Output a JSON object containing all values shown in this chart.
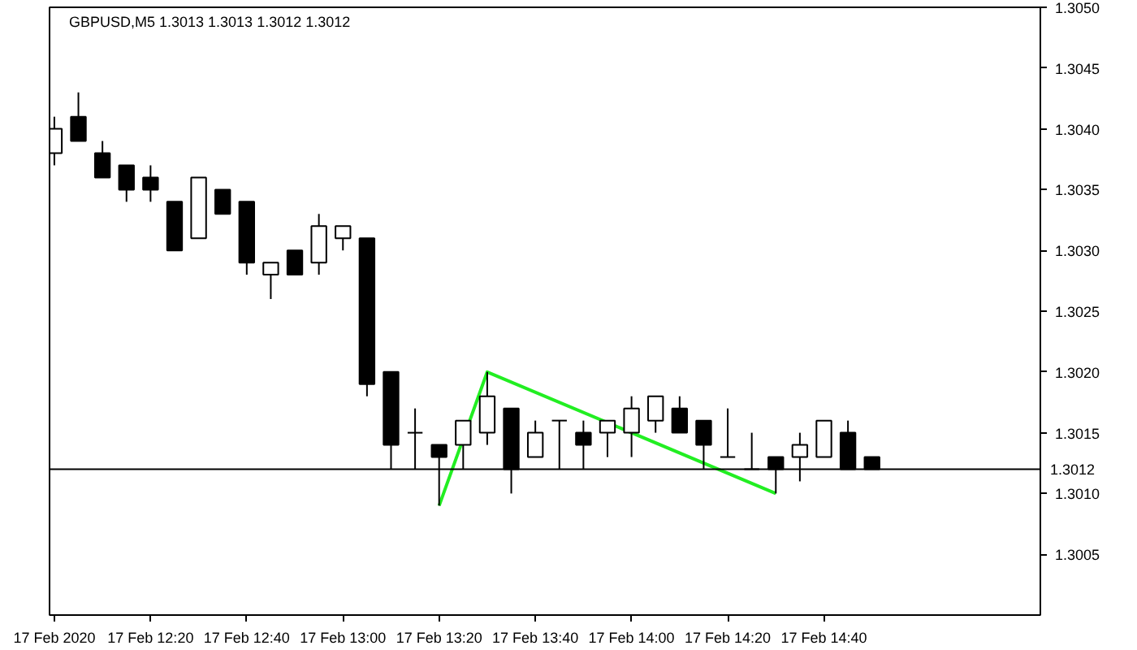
{
  "chart_data": {
    "type": "candlestick",
    "title": "GBPUSD,M5  1.3013 1.3013 1.3012 1.3012",
    "x": [
      "2020-02-17T12:00",
      "2020-02-17T12:05",
      "2020-02-17T12:10",
      "2020-02-17T12:15",
      "2020-02-17T12:20",
      "2020-02-17T12:25",
      "2020-02-17T12:30",
      "2020-02-17T12:35",
      "2020-02-17T12:40",
      "2020-02-17T12:45",
      "2020-02-17T12:50",
      "2020-02-17T12:55",
      "2020-02-17T13:00",
      "2020-02-17T13:05",
      "2020-02-17T13:10",
      "2020-02-17T13:15",
      "2020-02-17T13:20",
      "2020-02-17T13:25",
      "2020-02-17T13:30",
      "2020-02-17T13:35",
      "2020-02-17T13:40",
      "2020-02-17T13:45",
      "2020-02-17T13:50",
      "2020-02-17T13:55",
      "2020-02-17T14:00",
      "2020-02-17T14:05",
      "2020-02-17T14:10",
      "2020-02-17T14:15",
      "2020-02-17T14:20",
      "2020-02-17T14:25",
      "2020-02-17T14:30",
      "2020-02-17T14:35",
      "2020-02-17T14:40",
      "2020-02-17T14:45",
      "2020-02-17T14:50"
    ],
    "ohlc": [
      [
        1.3038,
        1.3041,
        1.3037,
        1.304
      ],
      [
        1.3041,
        1.3043,
        1.3039,
        1.3039
      ],
      [
        1.3038,
        1.3039,
        1.3036,
        1.3036
      ],
      [
        1.3037,
        1.3037,
        1.3034,
        1.3035
      ],
      [
        1.3036,
        1.3037,
        1.3034,
        1.3035
      ],
      [
        1.3034,
        1.3034,
        1.303,
        1.303
      ],
      [
        1.3031,
        1.3036,
        1.3031,
        1.3036
      ],
      [
        1.3035,
        1.3035,
        1.3033,
        1.3033
      ],
      [
        1.3034,
        1.3034,
        1.3028,
        1.3029
      ],
      [
        1.3028,
        1.3029,
        1.3026,
        1.3029
      ],
      [
        1.303,
        1.303,
        1.3028,
        1.3028
      ],
      [
        1.3029,
        1.3033,
        1.3028,
        1.3032
      ],
      [
        1.3031,
        1.3032,
        1.303,
        1.3032
      ],
      [
        1.3031,
        1.3031,
        1.3018,
        1.3019
      ],
      [
        1.302,
        1.302,
        1.3012,
        1.3014
      ],
      [
        1.3015,
        1.3017,
        1.3012,
        1.3015
      ],
      [
        1.3014,
        1.3014,
        1.3009,
        1.3013
      ],
      [
        1.3014,
        1.3016,
        1.3012,
        1.3016
      ],
      [
        1.3015,
        1.302,
        1.3014,
        1.3018
      ],
      [
        1.3017,
        1.3017,
        1.301,
        1.3012
      ],
      [
        1.3013,
        1.3016,
        1.3013,
        1.3015
      ],
      [
        1.3016,
        1.3016,
        1.3012,
        1.3016
      ],
      [
        1.3015,
        1.3016,
        1.3012,
        1.3014
      ],
      [
        1.3015,
        1.3016,
        1.3013,
        1.3016
      ],
      [
        1.3015,
        1.3018,
        1.3013,
        1.3017
      ],
      [
        1.3016,
        1.3018,
        1.3015,
        1.3018
      ],
      [
        1.3017,
        1.3018,
        1.3015,
        1.3015
      ],
      [
        1.3016,
        1.3016,
        1.3012,
        1.3014
      ],
      [
        1.3013,
        1.3017,
        1.3013,
        1.3013
      ],
      [
        1.3012,
        1.3015,
        1.3012,
        1.3012
      ],
      [
        1.3013,
        1.3013,
        1.301,
        1.3012
      ],
      [
        1.3013,
        1.3015,
        1.3011,
        1.3014
      ],
      [
        1.3013,
        1.3016,
        1.3013,
        1.3016
      ],
      [
        1.3015,
        1.3016,
        1.3012,
        1.3012
      ],
      [
        1.3013,
        1.3013,
        1.3012,
        1.3012
      ]
    ],
    "series": [
      {
        "type": "line",
        "color": "#22ee22",
        "x": [
          "2020-02-17T13:20",
          "2020-02-17T13:30",
          "2020-02-17T14:30"
        ],
        "values": [
          1.3009,
          1.302,
          1.301
        ]
      }
    ],
    "ref_lines": [
      {
        "axis": "y",
        "value": 1.3012,
        "label": "1.3012",
        "color": "#000000"
      }
    ],
    "xlim": [
      "2020-02-17T11:59",
      "2020-02-17T15:25"
    ],
    "xticks": [
      {
        "value": "2020-02-17T12:00",
        "label": "17 Feb 2020"
      },
      {
        "value": "2020-02-17T12:20",
        "label": "17 Feb 12:20"
      },
      {
        "value": "2020-02-17T12:40",
        "label": "17 Feb 12:40"
      },
      {
        "value": "2020-02-17T13:00",
        "label": "17 Feb 13:00"
      },
      {
        "value": "2020-02-17T13:20",
        "label": "17 Feb 13:20"
      },
      {
        "value": "2020-02-17T13:40",
        "label": "17 Feb 13:40"
      },
      {
        "value": "2020-02-17T14:00",
        "label": "17 Feb 14:00"
      },
      {
        "value": "2020-02-17T14:20",
        "label": "17 Feb 14:20"
      },
      {
        "value": "2020-02-17T14:40",
        "label": "17 Feb 14:40"
      }
    ],
    "ylim": [
      1.3,
      1.305
    ],
    "yticks": [
      {
        "value": 1.3005,
        "label": "1.3005"
      },
      {
        "value": 1.301,
        "label": "1.3010"
      },
      {
        "value": 1.3015,
        "label": "1.3015"
      },
      {
        "value": 1.302,
        "label": "1.3020"
      },
      {
        "value": 1.3025,
        "label": "1.3025"
      },
      {
        "value": 1.303,
        "label": "1.3030"
      },
      {
        "value": 1.3035,
        "label": "1.3035"
      },
      {
        "value": 1.304,
        "label": "1.3040"
      },
      {
        "value": 1.3045,
        "label": "1.3045"
      },
      {
        "value": 1.305,
        "label": "1.3050"
      }
    ],
    "grid": false
  }
}
